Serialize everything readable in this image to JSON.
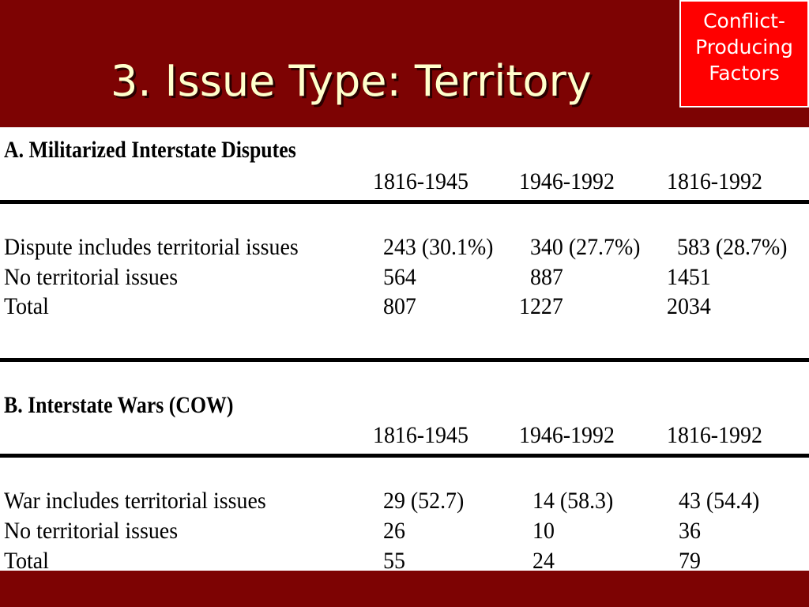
{
  "slide": {
    "title": "3. Issue Type: Territory",
    "corner_box": {
      "lines": [
        "Conflict-",
        "Producing",
        "Factors"
      ]
    }
  },
  "section_a": {
    "heading": "A. Militarized Interstate Disputes",
    "columns": [
      "1816-1945",
      "1946-1992",
      "1816-1992"
    ],
    "rows": [
      {
        "label": "Dispute includes territorial issues",
        "values": [
          "243 (30.1%)",
          "340 (27.7%)",
          "583 (28.7%)"
        ]
      },
      {
        "label": "No territorial issues",
        "values": [
          "564",
          "887",
          "1451"
        ]
      },
      {
        "label": "Total",
        "values": [
          "807",
          "1227",
          "2034"
        ]
      }
    ]
  },
  "section_b": {
    "heading": "B. Interstate Wars (COW)",
    "columns": [
      "1816-1945",
      "1946-1992",
      "1816-1992"
    ],
    "rows": [
      {
        "label": "War includes territorial issues",
        "values": [
          "29 (52.7)",
          "14 (58.3)",
          "43 (54.4)"
        ]
      },
      {
        "label": "No territorial issues",
        "values": [
          "26",
          "10",
          "36"
        ]
      },
      {
        "label": "Total",
        "values": [
          "55",
          "24",
          "79"
        ]
      }
    ]
  },
  "colors": {
    "background": "#7d0303",
    "title_text": "#ffffcc",
    "corner_box": "#ff0000",
    "table_background": "#ffffff"
  }
}
